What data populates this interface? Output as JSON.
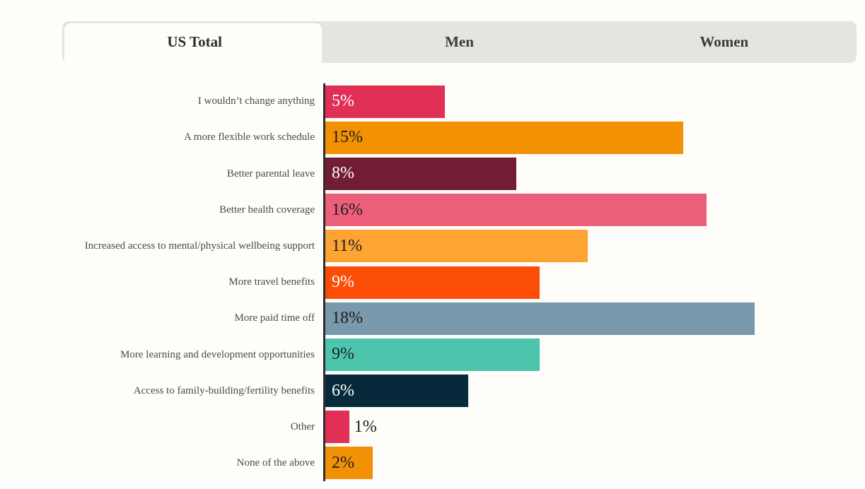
{
  "page": {
    "background": "#fefdfa"
  },
  "tab_bar": {
    "background": "#e4e4e1",
    "active_tab_background": "#fdfdf9",
    "tabs": [
      {
        "label": "US Total",
        "active": true
      },
      {
        "label": "Men",
        "active": false
      },
      {
        "label": "Women",
        "active": false
      }
    ]
  },
  "chart_data": {
    "type": "bar",
    "orientation": "horizontal",
    "title": "",
    "categories": [
      "I wouldn’t change anything",
      "A more flexible work schedule",
      "Better parental leave",
      "Better health coverage",
      "Increased access to mental/physical wellbeing support",
      "More travel benefits",
      "More paid time off",
      "More learning and development opportunities",
      "Access to family-building/fertility benefits",
      "Other",
      "None of the above"
    ],
    "values": [
      5,
      15,
      8,
      16,
      11,
      9,
      18,
      9,
      6,
      1,
      2
    ],
    "value_labels": [
      "5%",
      "15%",
      "8%",
      "16%",
      "11%",
      "9%",
      "18%",
      "9%",
      "6%",
      "1%",
      "2%"
    ],
    "bar_colors": [
      "#e22f55",
      "#f39104",
      "#721d33",
      "#ec5f78",
      "#fda433",
      "#fc4d06",
      "#7a99ad",
      "#4dc5ad",
      "#062a3b",
      "#e22f55",
      "#f39104"
    ],
    "value_label_colors": [
      "#ffffff",
      "#1c1c1c",
      "#ffffff",
      "#1c1c1c",
      "#1c1c1c",
      "#ffffff",
      "#1c1c1c",
      "#1c1c1c",
      "#ffffff",
      "#1c1c1c",
      "#1c1c1c"
    ],
    "xlim": [
      0,
      22
    ],
    "grid": false,
    "legend": "none",
    "axis_color": "#2b2b2b",
    "category_label_color": "#4a4a4a"
  }
}
